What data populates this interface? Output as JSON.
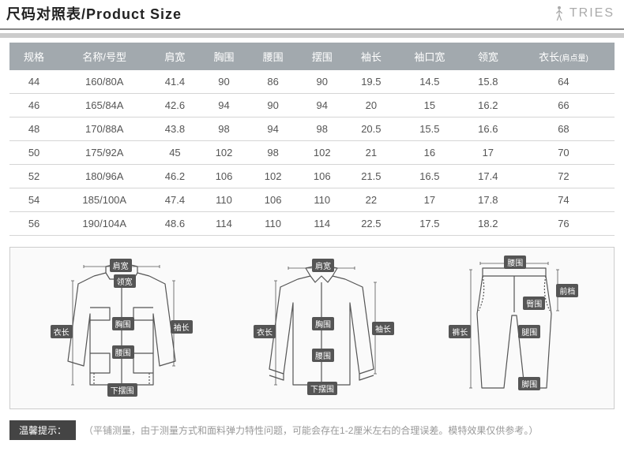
{
  "header": {
    "title": "尺码对照表/Product Size",
    "brand": "TRIES"
  },
  "table": {
    "columns": [
      "规格",
      "名称/号型",
      "肩宽",
      "胸围",
      "腰围",
      "摆围",
      "袖长",
      "袖口宽",
      "领宽",
      "衣长"
    ],
    "column_suffix": [
      "",
      "",
      "",
      "",
      "",
      "",
      "",
      "",
      "",
      "(肩点量)"
    ],
    "rows": [
      [
        "44",
        "160/80A",
        "41.4",
        "90",
        "86",
        "90",
        "19.5",
        "14.5",
        "15.8",
        "64"
      ],
      [
        "46",
        "165/84A",
        "42.6",
        "94",
        "90",
        "94",
        "20",
        "15",
        "16.2",
        "66"
      ],
      [
        "48",
        "170/88A",
        "43.8",
        "98",
        "94",
        "98",
        "20.5",
        "15.5",
        "16.6",
        "68"
      ],
      [
        "50",
        "175/92A",
        "45",
        "102",
        "98",
        "102",
        "21",
        "16",
        "17",
        "70"
      ],
      [
        "52",
        "180/96A",
        "46.2",
        "106",
        "102",
        "106",
        "21.5",
        "16.5",
        "17.4",
        "72"
      ],
      [
        "54",
        "185/100A",
        "47.4",
        "110",
        "106",
        "110",
        "22",
        "17",
        "17.8",
        "74"
      ],
      [
        "56",
        "190/104A",
        "48.6",
        "114",
        "110",
        "114",
        "22.5",
        "17.5",
        "18.2",
        "76"
      ]
    ],
    "header_bg": "#a2a9ae",
    "header_color": "#ffffff",
    "row_border": "#d5d5d5",
    "cell_color": "#555555",
    "fontsize": 13
  },
  "diagrams": {
    "jacket": {
      "labels": {
        "shoulder": "肩宽",
        "collar": "领宽",
        "chest": "胸围",
        "waist": "腰围",
        "hem": "下摆围",
        "length": "衣长",
        "sleeve": "袖长"
      }
    },
    "shirt": {
      "labels": {
        "shoulder": "肩宽",
        "chest": "胸围",
        "waist": "腰围",
        "hem": "下摆围",
        "length": "衣长",
        "sleeve": "袖长"
      }
    },
    "pants": {
      "labels": {
        "waist": "腰围",
        "hip": "臀围",
        "thigh": "腿围",
        "leg_open": "脚围",
        "length": "裤长",
        "rise": "前档"
      }
    },
    "stroke": "#555555",
    "label_bg": "#555555",
    "label_color": "#ffffff",
    "bg": "#fafafa",
    "border": "#cccccc"
  },
  "footer": {
    "tip_label": "温馨提示：",
    "tip_text": "（平铺测量，由于测量方式和面料弹力特性问题，可能会存在1-2厘米左右的合理误差。模特效果仅供参考。）"
  },
  "colors": {
    "title": "#222222",
    "brand": "#aaaaaa",
    "accent": "#cccccc",
    "header_border": "#888888",
    "tip_bg": "#444444",
    "tip_text": "#999999"
  }
}
